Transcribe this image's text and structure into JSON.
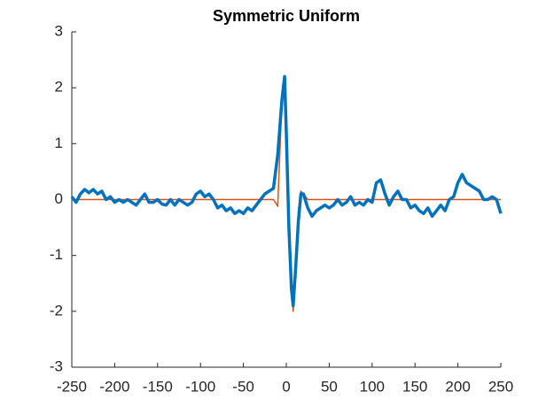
{
  "chart_data": {
    "type": "line",
    "title": "Symmetric Uniform",
    "x": [
      -250,
      -245,
      -240,
      -235,
      -230,
      -225,
      -220,
      -215,
      -210,
      -205,
      -200,
      -195,
      -190,
      -185,
      -180,
      -175,
      -170,
      -165,
      -160,
      -155,
      -150,
      -145,
      -140,
      -135,
      -130,
      -125,
      -120,
      -115,
      -110,
      -105,
      -100,
      -95,
      -90,
      -85,
      -80,
      -75,
      -70,
      -65,
      -60,
      -55,
      -50,
      -45,
      -40,
      -35,
      -30,
      -25,
      -20,
      -15,
      -10,
      -5,
      -2,
      0,
      3,
      6,
      8,
      11,
      14,
      17,
      20,
      25,
      30,
      35,
      40,
      45,
      50,
      55,
      60,
      65,
      70,
      75,
      80,
      85,
      90,
      95,
      100,
      105,
      110,
      115,
      120,
      125,
      130,
      135,
      140,
      145,
      150,
      155,
      160,
      165,
      170,
      175,
      180,
      185,
      190,
      195,
      200,
      205,
      210,
      215,
      220,
      225,
      230,
      235,
      240,
      245,
      250
    ],
    "series": [
      {
        "color": "#D95319",
        "width": 1.5,
        "values": [
          0,
          0,
          0,
          0,
          0,
          0,
          0,
          0,
          0,
          0,
          0,
          0,
          0,
          0,
          0,
          0,
          0,
          0,
          0,
          0,
          0,
          0,
          0,
          0,
          0,
          0,
          0,
          0,
          0,
          0,
          0,
          0,
          0,
          0,
          0,
          0,
          0,
          0,
          0,
          0,
          0,
          0,
          0,
          0,
          0,
          0,
          0,
          0,
          -0.12,
          1.8,
          2.2,
          1.5,
          -0.4,
          -1.6,
          -2.0,
          -1.3,
          -0.2,
          0.15,
          0.1,
          0,
          0,
          0,
          0,
          0,
          0,
          0,
          0,
          0,
          0,
          0,
          0,
          0,
          0,
          0,
          0,
          0,
          0,
          0,
          0,
          0,
          0,
          0,
          0,
          0,
          0,
          0,
          0,
          0,
          0,
          0,
          0,
          0,
          0,
          0,
          0,
          0,
          0,
          0,
          0,
          0,
          0,
          0,
          0,
          0,
          0
        ]
      },
      {
        "color": "#0072BD",
        "width": 3.5,
        "values": [
          0.05,
          -0.05,
          0.1,
          0.18,
          0.12,
          0.18,
          0.1,
          0.15,
          0.0,
          0.05,
          -0.05,
          0.0,
          -0.05,
          0.0,
          -0.05,
          -0.1,
          0.0,
          0.1,
          -0.05,
          -0.05,
          0.0,
          -0.08,
          -0.1,
          0.0,
          -0.1,
          0.0,
          -0.05,
          -0.1,
          -0.05,
          0.1,
          0.15,
          0.05,
          0.1,
          0.0,
          -0.15,
          -0.1,
          -0.2,
          -0.15,
          -0.25,
          -0.2,
          -0.25,
          -0.15,
          -0.2,
          -0.1,
          0.0,
          0.1,
          0.15,
          0.2,
          0.8,
          1.8,
          2.2,
          1.2,
          -0.5,
          -1.6,
          -1.9,
          -1.2,
          -0.4,
          0.1,
          0.1,
          -0.15,
          -0.3,
          -0.2,
          -0.15,
          -0.1,
          -0.15,
          -0.1,
          0.0,
          -0.1,
          -0.05,
          0.05,
          -0.1,
          -0.05,
          -0.1,
          0.0,
          -0.05,
          0.3,
          0.35,
          0.1,
          -0.1,
          0.05,
          0.15,
          0.0,
          0.0,
          -0.15,
          -0.1,
          -0.2,
          -0.25,
          -0.15,
          -0.3,
          -0.2,
          -0.1,
          -0.2,
          0.0,
          0.05,
          0.3,
          0.45,
          0.3,
          0.25,
          0.2,
          0.15,
          0.0,
          0.0,
          0.05,
          0.0,
          -0.25
        ]
      }
    ],
    "xlim": [
      -250,
      250
    ],
    "xticks": [
      -250,
      -200,
      -150,
      -100,
      -50,
      0,
      50,
      100,
      150,
      200,
      250
    ],
    "ylim": [
      -3,
      3
    ],
    "yticks": [
      -3,
      -2,
      -1,
      0,
      1,
      2,
      3
    ]
  }
}
